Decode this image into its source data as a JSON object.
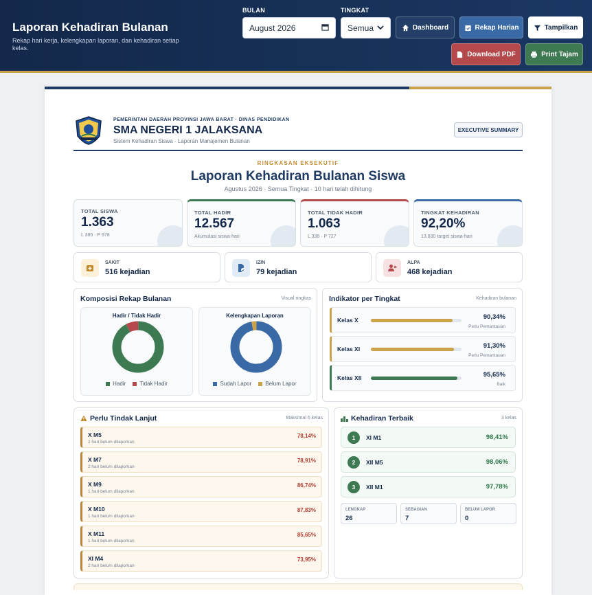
{
  "header": {
    "title": "Laporan Kehadiran Bulanan",
    "subtitle": "Rekap hari kerja, kelengkapan laporan, dan kehadiran setiap kelas.",
    "bulan_label": "BULAN",
    "bulan_value": "August 2026",
    "tingkat_label": "TINGKAT",
    "tingkat_value": "Semua",
    "buttons": {
      "dashboard": "Dashboard",
      "rekap_harian": "Rekap Harian",
      "tampilkan": "Tampilkan",
      "download_pdf": "Download PDF",
      "print_tajam": "Print Tajam"
    }
  },
  "report": {
    "gov": "PEMERINTAH DAERAH PROVINSI JAWA BARAT · DINAS PENDIDIKAN",
    "school": "SMA NEGERI 1 JALAKSANA",
    "system": "Sistem Kehadiran Siswa · Laporan Manajemen Bulanan",
    "exec_badge": "EXECUTIVE SUMMARY",
    "kicker": "RINGKASAN EKSEKUTIF",
    "title": "Laporan Kehadiran Bulanan Siswa",
    "subtitle": "Agustus 2026 · Semua Tingkat · 10 hari telah dihitung"
  },
  "stats": [
    {
      "label": "TOTAL SISWA",
      "value": "1.363",
      "note": "L 385 · P 978",
      "accent": "#c9d2de"
    },
    {
      "label": "TOTAL HADIR",
      "value": "12.567",
      "note": "Akumulasi siswa-hari",
      "accent": "#3d7a52"
    },
    {
      "label": "TOTAL TIDAK HADIR",
      "value": "1.063",
      "note": "L 336 · P 727",
      "accent": "#b5484b"
    },
    {
      "label": "TINGKAT KEHADIRAN",
      "value": "92,20%",
      "note": "13.630 target siswa-hari",
      "accent": "#3a6aa5"
    }
  ],
  "absences": [
    {
      "label": "SAKIT",
      "value": "516 kejadian",
      "icon": "medical-kit-icon",
      "bg": "#fdf0d8",
      "color": "#c08a2c"
    },
    {
      "label": "IZIN",
      "value": "79 kejadian",
      "icon": "document-check-icon",
      "bg": "#e1ebf6",
      "color": "#3a6aa5"
    },
    {
      "label": "ALPA",
      "value": "468 kejadian",
      "icon": "user-x-icon",
      "bg": "#f8e1e2",
      "color": "#b5484b"
    }
  ],
  "composition": {
    "title": "Komposisi Rekap Bulanan",
    "note": "Visual ringkas",
    "hadir_chart": {
      "title": "Hadir / Tidak Hadir",
      "legend": [
        "Hadir",
        "Tidak Hadir"
      ],
      "values": [
        12567,
        1063
      ],
      "colors": [
        "#3d7a52",
        "#b5484b"
      ]
    },
    "laporan_chart": {
      "title": "Kelengkapan Laporan",
      "legend": [
        "Sudah Lapor",
        "Belum Lapor"
      ],
      "values": [
        97,
        3
      ],
      "colors": [
        "#3a6aa5",
        "#c9a24a"
      ]
    }
  },
  "indikator": {
    "title": "Indikator per Tingkat",
    "note": "Kehadiran bulanan",
    "items": [
      {
        "label": "Kelas X",
        "percent": "90,34%",
        "fill": 0.9034,
        "status": "Perlu Pemantauan",
        "color": "#c9a24a"
      },
      {
        "label": "Kelas XI",
        "percent": "91,30%",
        "fill": 0.913,
        "status": "Perlu Pemantauan",
        "color": "#c9a24a"
      },
      {
        "label": "Kelas XII",
        "percent": "95,65%",
        "fill": 0.9565,
        "status": "Baik",
        "color": "#3d7a52"
      }
    ]
  },
  "tindak_lanjut": {
    "title": "Perlu Tindak Lanjut",
    "note": "Maksimal 6 kelas",
    "items": [
      {
        "kelas": "X M5",
        "info": "2 hari belum dilaporkan",
        "percent": "78,14%"
      },
      {
        "kelas": "X M7",
        "info": "2 hari belum dilaporkan",
        "percent": "78,91%"
      },
      {
        "kelas": "X M9",
        "info": "1 hari belum dilaporkan",
        "percent": "86,74%"
      },
      {
        "kelas": "X M10",
        "info": "1 hari belum dilaporkan",
        "percent": "87,83%"
      },
      {
        "kelas": "X M11",
        "info": "1 hari belum dilaporkan",
        "percent": "85,65%"
      },
      {
        "kelas": "XI M4",
        "info": "2 hari belum dilaporkan",
        "percent": "73,95%"
      }
    ]
  },
  "terbaik": {
    "title": "Kehadiran Terbaik",
    "note": "3 kelas",
    "items": [
      {
        "rank": "1",
        "kelas": "XI M1",
        "percent": "98,41%"
      },
      {
        "rank": "2",
        "kelas": "XII M5",
        "percent": "98,06%"
      },
      {
        "rank": "3",
        "kelas": "XII M1",
        "percent": "97,78%"
      }
    ],
    "counts": [
      {
        "label": "LENGKAP",
        "value": "26"
      },
      {
        "label": "SEBAGIAN",
        "value": "7"
      },
      {
        "label": "BELUM LAPOR",
        "value": "0"
      }
    ]
  }
}
